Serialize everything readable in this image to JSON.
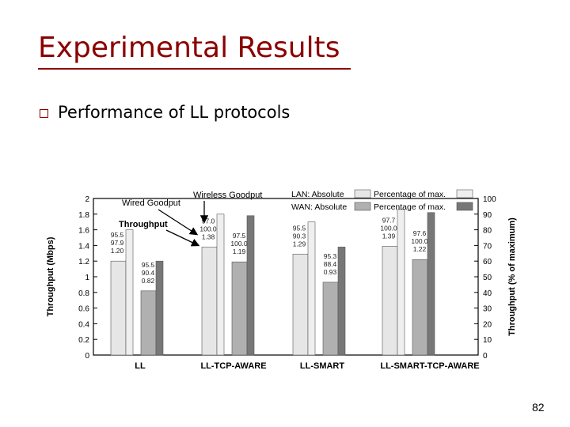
{
  "slide": {
    "title": "Experimental Results",
    "bullet": "Performance of LL protocols",
    "page_number": "82"
  },
  "colors": {
    "title": "#8b0000",
    "lan_absolute": "#e6e6e6",
    "lan_percent": "#efefef",
    "wan_absolute": "#b0b0b0",
    "wan_percent": "#777777"
  },
  "chart_data": {
    "type": "bar",
    "categories": [
      "LL",
      "LL-TCP-AWARE",
      "LL-SMART",
      "LL-SMART-TCP-AWARE"
    ],
    "ylabel": "Throughput (Mbps)",
    "ylabel_right": "Throughput (% of maximum)",
    "ylim": [
      0,
      2
    ],
    "ylim_right": [
      0,
      100
    ],
    "yticks": [
      "0",
      "0.2",
      "0.4",
      "0.6",
      "0.8",
      "1",
      "1.2",
      "1.4",
      "1.6",
      "1.8",
      "2"
    ],
    "yticks_right": [
      "0",
      "10",
      "20",
      "30",
      "40",
      "50",
      "60",
      "70",
      "80",
      "90",
      "100"
    ],
    "legend": [
      "LAN: Absolute",
      "Percentage of max.",
      "WAN: Absolute",
      "Percentage of max."
    ],
    "legend_position": "top-right",
    "grid": false,
    "series": [
      {
        "name": "LAN: Absolute",
        "values": [
          1.2,
          1.38,
          1.29,
          1.39
        ]
      },
      {
        "name": "Percentage of max.",
        "values": [
          80,
          90,
          85,
          93
        ]
      },
      {
        "name": "WAN: Absolute",
        "values": [
          0.82,
          1.19,
          0.93,
          1.22
        ]
      },
      {
        "name": "Percentage of max.",
        "values": [
          60,
          89,
          69,
          91
        ]
      }
    ],
    "bar_labels": [
      [
        "95.5",
        "97.9",
        "1.20"
      ],
      [
        "97.0",
        "100.0",
        "1.38"
      ],
      [
        "95.5",
        "90.3",
        "1.29"
      ],
      [
        "97.7",
        "100.0",
        "1.39"
      ],
      [
        "95.5",
        "90.4",
        "0.82"
      ],
      [
        "97.5",
        "100.0",
        "1.19"
      ],
      [
        "95.3",
        "88.4",
        "0.93"
      ],
      [
        "97.6",
        "100.0",
        "1.22"
      ]
    ],
    "annotations": [
      "Wireless Goodput",
      "Wired Goodput",
      "Throughput"
    ]
  }
}
